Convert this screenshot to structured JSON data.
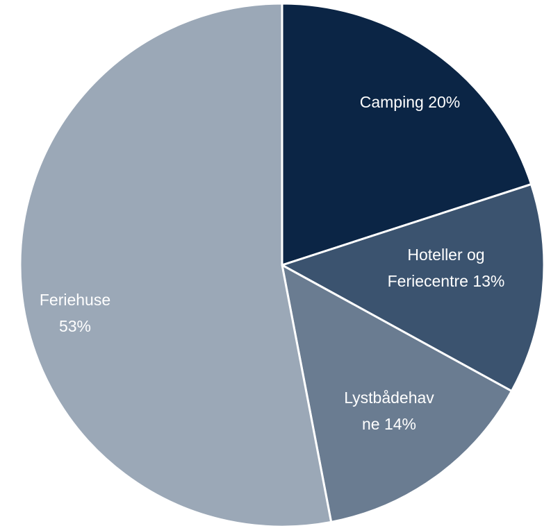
{
  "chart_data": {
    "type": "pie",
    "categories": [
      "Camping",
      "Hoteller og Feriecentre",
      "Lystbådehavne",
      "Feriehuse"
    ],
    "values": [
      20,
      13,
      14,
      53
    ],
    "value_labels": [
      "20%",
      "13%",
      "14%",
      "53%"
    ],
    "colors": [
      "#0b2545",
      "#3b536f",
      "#6a7c91",
      "#9ba8b7"
    ]
  }
}
